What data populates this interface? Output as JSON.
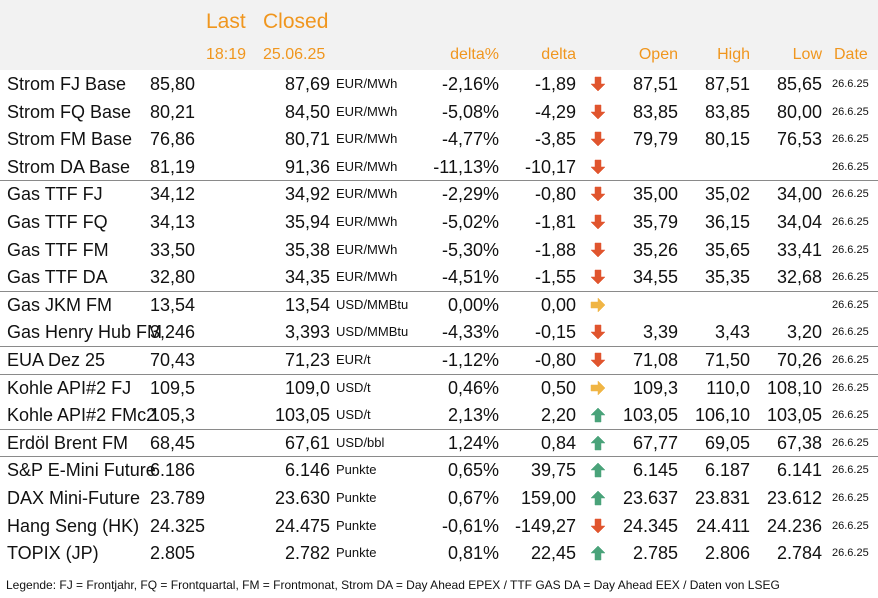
{
  "header": {
    "last_label": "Last",
    "closed_label": "Closed",
    "last_time": "18:19",
    "closed_date": "25.06.25",
    "delta_pct_label": "delta%",
    "delta_label": "delta",
    "open_label": "Open",
    "high_label": "High",
    "low_label": "Low",
    "date_label": "Date"
  },
  "colors": {
    "header_text": "#f0961e",
    "down": "#e0552e",
    "side": "#f0b545",
    "up": "#4aa37a"
  },
  "groups": [
    {
      "rows": [
        {
          "name": "Strom FJ Base",
          "last": "85,80",
          "closed": "87,69",
          "unit": "EUR/MWh",
          "delta_pct": "-2,16%",
          "delta": "-1,89",
          "trend": "down",
          "open": "87,51",
          "high": "87,51",
          "low": "85,65",
          "date": "26.6.25"
        },
        {
          "name": "Strom FQ Base",
          "last": "80,21",
          "closed": "84,50",
          "unit": "EUR/MWh",
          "delta_pct": "-5,08%",
          "delta": "-4,29",
          "trend": "down",
          "open": "83,85",
          "high": "83,85",
          "low": "80,00",
          "date": "26.6.25"
        },
        {
          "name": "Strom FM Base",
          "last": "76,86",
          "closed": "80,71",
          "unit": "EUR/MWh",
          "delta_pct": "-4,77%",
          "delta": "-3,85",
          "trend": "down",
          "open": "79,79",
          "high": "80,15",
          "low": "76,53",
          "date": "26.6.25"
        },
        {
          "name": "Strom DA Base",
          "last": "81,19",
          "closed": "91,36",
          "unit": "EUR/MWh",
          "delta_pct": "-11,13%",
          "delta": "-10,17",
          "trend": "down",
          "open": "",
          "high": "",
          "low": "",
          "date": "26.6.25"
        }
      ]
    },
    {
      "rows": [
        {
          "name": "Gas TTF FJ",
          "last": "34,12",
          "closed": "34,92",
          "unit": "EUR/MWh",
          "delta_pct": "-2,29%",
          "delta": "-0,80",
          "trend": "down",
          "open": "35,00",
          "high": "35,02",
          "low": "34,00",
          "date": "26.6.25"
        },
        {
          "name": "Gas TTF FQ",
          "last": "34,13",
          "closed": "35,94",
          "unit": "EUR/MWh",
          "delta_pct": "-5,02%",
          "delta": "-1,81",
          "trend": "down",
          "open": "35,79",
          "high": "36,15",
          "low": "34,04",
          "date": "26.6.25"
        },
        {
          "name": "Gas TTF FM",
          "last": "33,50",
          "closed": "35,38",
          "unit": "EUR/MWh",
          "delta_pct": "-5,30%",
          "delta": "-1,88",
          "trend": "down",
          "open": "35,26",
          "high": "35,65",
          "low": "33,41",
          "date": "26.6.25"
        },
        {
          "name": "Gas TTF DA",
          "last": "32,80",
          "closed": "34,35",
          "unit": "EUR/MWh",
          "delta_pct": "-4,51%",
          "delta": "-1,55",
          "trend": "down",
          "open": "34,55",
          "high": "35,35",
          "low": "32,68",
          "date": "26.6.25"
        }
      ]
    },
    {
      "rows": [
        {
          "name": "Gas JKM FM",
          "last": "13,54",
          "closed": "13,54",
          "unit": "USD/MMBtu",
          "delta_pct": "0,00%",
          "delta": "0,00",
          "trend": "side",
          "open": "",
          "high": "",
          "low": "",
          "date": "26.6.25"
        },
        {
          "name": "Gas Henry Hub FM",
          "last": "3,246",
          "closed": "3,393",
          "unit": "USD/MMBtu",
          "delta_pct": "-4,33%",
          "delta": "-0,15",
          "trend": "down",
          "open": "3,39",
          "high": "3,43",
          "low": "3,20",
          "date": "26.6.25"
        }
      ]
    },
    {
      "rows": [
        {
          "name": "EUA Dez 25",
          "last": "70,43",
          "closed": "71,23",
          "unit": "EUR/t",
          "delta_pct": "-1,12%",
          "delta": "-0,80",
          "trend": "down",
          "open": "71,08",
          "high": "71,50",
          "low": "70,26",
          "date": "26.6.25"
        }
      ]
    },
    {
      "rows": [
        {
          "name": "Kohle API#2 FJ",
          "last": "109,5",
          "closed": "109,0",
          "unit": "USD/t",
          "delta_pct": "0,46%",
          "delta": "0,50",
          "trend": "side",
          "open": "109,3",
          "high": "110,0",
          "low": "108,10",
          "date": "26.6.25"
        },
        {
          "name": "Kohle API#2 FMc2",
          "last": "105,3",
          "closed": "103,05",
          "unit": "USD/t",
          "delta_pct": "2,13%",
          "delta": "2,20",
          "trend": "up",
          "open": "103,05",
          "high": "106,10",
          "low": "103,05",
          "date": "26.6.25"
        }
      ]
    },
    {
      "rows": [
        {
          "name": "Erdöl Brent FM",
          "last": "68,45",
          "closed": "67,61",
          "unit": "USD/bbl",
          "delta_pct": "1,24%",
          "delta": "0,84",
          "trend": "up",
          "open": "67,77",
          "high": "69,05",
          "low": "67,38",
          "date": "26.6.25"
        }
      ]
    },
    {
      "rows": [
        {
          "name": "S&P E-Mini Future",
          "last": "6.186",
          "closed": "6.146",
          "unit": "Punkte",
          "delta_pct": "0,65%",
          "delta": "39,75",
          "trend": "up",
          "open": "6.145",
          "high": "6.187",
          "low": "6.141",
          "date": "26.6.25"
        },
        {
          "name": "DAX Mini-Future",
          "last": "23.789",
          "closed": "23.630",
          "unit": "Punkte",
          "delta_pct": "0,67%",
          "delta": "159,00",
          "trend": "up",
          "open": "23.637",
          "high": "23.831",
          "low": "23.612",
          "date": "26.6.25"
        },
        {
          "name": "Hang Seng (HK)",
          "last": "24.325",
          "closed": "24.475",
          "unit": "Punkte",
          "delta_pct": "-0,61%",
          "delta": "-149,27",
          "trend": "down",
          "open": "24.345",
          "high": "24.411",
          "low": "24.236",
          "date": "26.6.25"
        },
        {
          "name": "TOPIX (JP)",
          "last": "2.805",
          "closed": "2.782",
          "unit": "Punkte",
          "delta_pct": "0,81%",
          "delta": "22,45",
          "trend": "up",
          "open": "2.785",
          "high": "2.806",
          "low": "2.784",
          "date": "26.6.25"
        }
      ]
    }
  ],
  "legend": "Legende: FJ = Frontjahr, FQ = Frontquartal, FM = Frontmonat, Strom DA = Day Ahead EPEX / TTF GAS DA = Day Ahead EEX / Daten von LSEG"
}
